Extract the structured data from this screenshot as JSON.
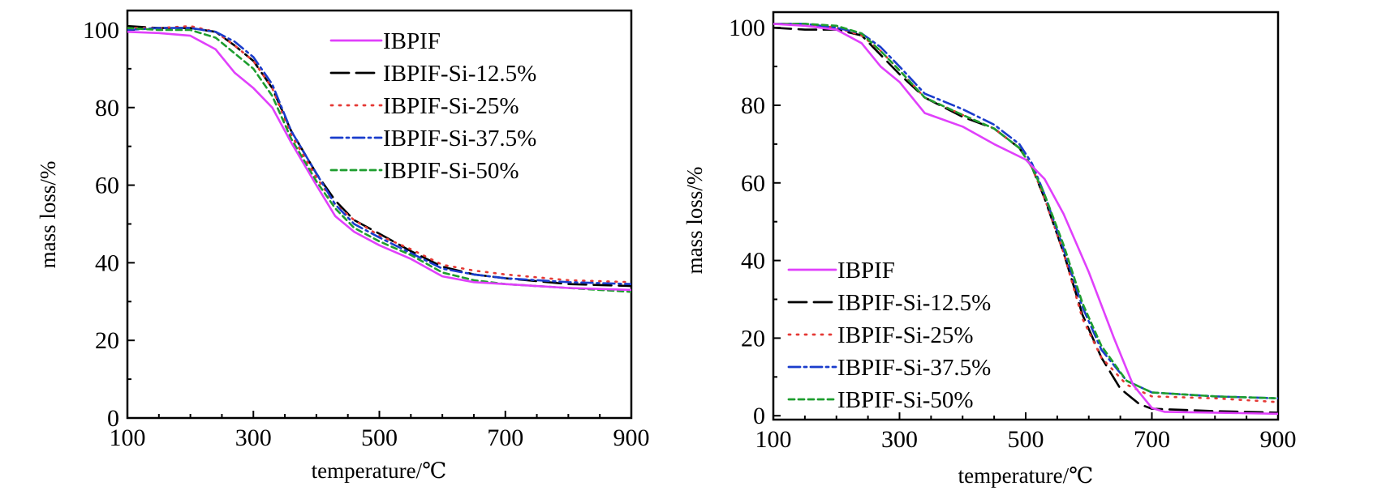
{
  "colors": {
    "IBPIF": "#e040fb",
    "IBPIF-Si-12.5%": "#000000",
    "IBPIF-Si-25%": "#e53935",
    "IBPIF-Si-37.5%": "#1a3ccc",
    "IBPIF-Si-50%": "#1e9e2e"
  },
  "chart_data": [
    {
      "type": "line",
      "xlabel": "temperature/℃",
      "ylabel": "mass loss/%",
      "xlim": [
        100,
        900
      ],
      "ylim": [
        0,
        105
      ],
      "xticks": [
        100,
        300,
        500,
        700,
        900
      ],
      "yticks": [
        0,
        20,
        40,
        60,
        80,
        100
      ],
      "legend_position": "top-center",
      "grid": false,
      "series": [
        {
          "name": "IBPIF",
          "dash": "solid",
          "points": [
            [
              100,
              99.5
            ],
            [
              150,
              99.2
            ],
            [
              200,
              98.5
            ],
            [
              240,
              95
            ],
            [
              270,
              89
            ],
            [
              300,
              85
            ],
            [
              330,
              80
            ],
            [
              360,
              71
            ],
            [
              400,
              60
            ],
            [
              430,
              52
            ],
            [
              460,
              48
            ],
            [
              500,
              44.5
            ],
            [
              550,
              41
            ],
            [
              600,
              36.5
            ],
            [
              650,
              35
            ],
            [
              700,
              34.5
            ],
            [
              800,
              33.5
            ],
            [
              900,
              33
            ]
          ]
        },
        {
          "name": "IBPIF-Si-12.5%",
          "dash": "longdash",
          "points": [
            [
              100,
              101
            ],
            [
              150,
              100.5
            ],
            [
              200,
              100.5
            ],
            [
              240,
              99.5
            ],
            [
              270,
              96
            ],
            [
              300,
              92
            ],
            [
              330,
              85
            ],
            [
              360,
              74
            ],
            [
              400,
              63
            ],
            [
              430,
              56
            ],
            [
              460,
              51
            ],
            [
              500,
              47.5
            ],
            [
              550,
              43
            ],
            [
              600,
              39
            ],
            [
              650,
              37
            ],
            [
              700,
              36
            ],
            [
              800,
              34.5
            ],
            [
              900,
              34
            ]
          ]
        },
        {
          "name": "IBPIF-Si-25%",
          "dash": "dotted",
          "points": [
            [
              100,
              100.5
            ],
            [
              150,
              100.5
            ],
            [
              200,
              101
            ],
            [
              240,
              99.5
            ],
            [
              270,
              96
            ],
            [
              300,
              92
            ],
            [
              330,
              85
            ],
            [
              360,
              73
            ],
            [
              400,
              62
            ],
            [
              430,
              55
            ],
            [
              460,
              51
            ],
            [
              500,
              47
            ],
            [
              550,
              43.5
            ],
            [
              600,
              39.5
            ],
            [
              650,
              38
            ],
            [
              700,
              37
            ],
            [
              800,
              35.5
            ],
            [
              900,
              35
            ]
          ]
        },
        {
          "name": "IBPIF-Si-37.5%",
          "dash": "dashdot",
          "points": [
            [
              100,
              100
            ],
            [
              150,
              100.5
            ],
            [
              200,
              100.5
            ],
            [
              240,
              99.5
            ],
            [
              270,
              97
            ],
            [
              300,
              93
            ],
            [
              330,
              86
            ],
            [
              360,
              74
            ],
            [
              400,
              63
            ],
            [
              430,
              55
            ],
            [
              460,
              50
            ],
            [
              500,
              46.5
            ],
            [
              550,
              42.5
            ],
            [
              600,
              38.5
            ],
            [
              650,
              37
            ],
            [
              700,
              36
            ],
            [
              800,
              35
            ],
            [
              900,
              34.5
            ]
          ]
        },
        {
          "name": "IBPIF-Si-50%",
          "dash": "shortdash",
          "points": [
            [
              100,
              100.5
            ],
            [
              150,
              100
            ],
            [
              200,
              100
            ],
            [
              240,
              98
            ],
            [
              270,
              94
            ],
            [
              300,
              90
            ],
            [
              330,
              83
            ],
            [
              360,
              72
            ],
            [
              400,
              61
            ],
            [
              430,
              54
            ],
            [
              460,
              49
            ],
            [
              500,
              45.5
            ],
            [
              550,
              42
            ],
            [
              600,
              37.5
            ],
            [
              650,
              35.5
            ],
            [
              700,
              34.5
            ],
            [
              800,
              33.5
            ],
            [
              900,
              32.5
            ]
          ]
        }
      ]
    },
    {
      "type": "line",
      "xlabel": "temperature/℃",
      "ylabel": "mass loss/%",
      "xlim": [
        100,
        900
      ],
      "ylim": [
        -1,
        104
      ],
      "xticks": [
        100,
        300,
        500,
        700,
        900
      ],
      "yticks": [
        0,
        20,
        40,
        60,
        80,
        100
      ],
      "legend_position": "bottom-left",
      "grid": false,
      "series": [
        {
          "name": "IBPIF",
          "dash": "solid",
          "points": [
            [
              100,
              101
            ],
            [
              150,
              100.5
            ],
            [
              200,
              99.5
            ],
            [
              240,
              96
            ],
            [
              270,
              90
            ],
            [
              300,
              86
            ],
            [
              340,
              78
            ],
            [
              400,
              74.5
            ],
            [
              450,
              70
            ],
            [
              500,
              66
            ],
            [
              530,
              61
            ],
            [
              560,
              52
            ],
            [
              600,
              37
            ],
            [
              640,
              20
            ],
            [
              670,
              8
            ],
            [
              700,
              2
            ],
            [
              720,
              1
            ],
            [
              800,
              0.8
            ],
            [
              900,
              0.5
            ]
          ]
        },
        {
          "name": "IBPIF-Si-12.5%",
          "dash": "longdash",
          "points": [
            [
              100,
              100
            ],
            [
              150,
              99.5
            ],
            [
              200,
              99.5
            ],
            [
              240,
              98
            ],
            [
              270,
              93
            ],
            [
              300,
              88
            ],
            [
              340,
              82
            ],
            [
              400,
              77
            ],
            [
              450,
              74
            ],
            [
              490,
              69
            ],
            [
              510,
              64
            ],
            [
              530,
              56
            ],
            [
              560,
              42
            ],
            [
              590,
              26
            ],
            [
              620,
              15
            ],
            [
              650,
              7
            ],
            [
              680,
              3
            ],
            [
              700,
              1.8
            ],
            [
              800,
              1.2
            ],
            [
              900,
              0.8
            ]
          ]
        },
        {
          "name": "IBPIF-Si-25%",
          "dash": "dotted",
          "points": [
            [
              100,
              101
            ],
            [
              150,
              101
            ],
            [
              200,
              100
            ],
            [
              240,
              98
            ],
            [
              270,
              94
            ],
            [
              300,
              89
            ],
            [
              340,
              82
            ],
            [
              400,
              77.5
            ],
            [
              450,
              74
            ],
            [
              490,
              69
            ],
            [
              510,
              64
            ],
            [
              530,
              56
            ],
            [
              560,
              42
            ],
            [
              590,
              25
            ],
            [
              620,
              15
            ],
            [
              660,
              8
            ],
            [
              700,
              5
            ],
            [
              800,
              4.5
            ],
            [
              900,
              3.5
            ]
          ]
        },
        {
          "name": "IBPIF-Si-37.5%",
          "dash": "dashdot",
          "points": [
            [
              100,
              101
            ],
            [
              150,
              101
            ],
            [
              200,
              100
            ],
            [
              240,
              98.5
            ],
            [
              270,
              95
            ],
            [
              300,
              90
            ],
            [
              340,
              83
            ],
            [
              400,
              79
            ],
            [
              450,
              75
            ],
            [
              490,
              70
            ],
            [
              510,
              65
            ],
            [
              530,
              57
            ],
            [
              560,
              43
            ],
            [
              590,
              28
            ],
            [
              620,
              17
            ],
            [
              660,
              9
            ],
            [
              700,
              6
            ],
            [
              800,
              5
            ],
            [
              900,
              4.5
            ]
          ]
        },
        {
          "name": "IBPIF-Si-50%",
          "dash": "shortdash",
          "points": [
            [
              100,
              101
            ],
            [
              150,
              101
            ],
            [
              200,
              100.5
            ],
            [
              240,
              98.5
            ],
            [
              270,
              94
            ],
            [
              300,
              89
            ],
            [
              340,
              82
            ],
            [
              400,
              77.5
            ],
            [
              450,
              74
            ],
            [
              490,
              69
            ],
            [
              510,
              64
            ],
            [
              530,
              57
            ],
            [
              560,
              44
            ],
            [
              590,
              29
            ],
            [
              620,
              18
            ],
            [
              660,
              9
            ],
            [
              700,
              6
            ],
            [
              800,
              5
            ],
            [
              900,
              4.5
            ]
          ]
        }
      ]
    }
  ]
}
